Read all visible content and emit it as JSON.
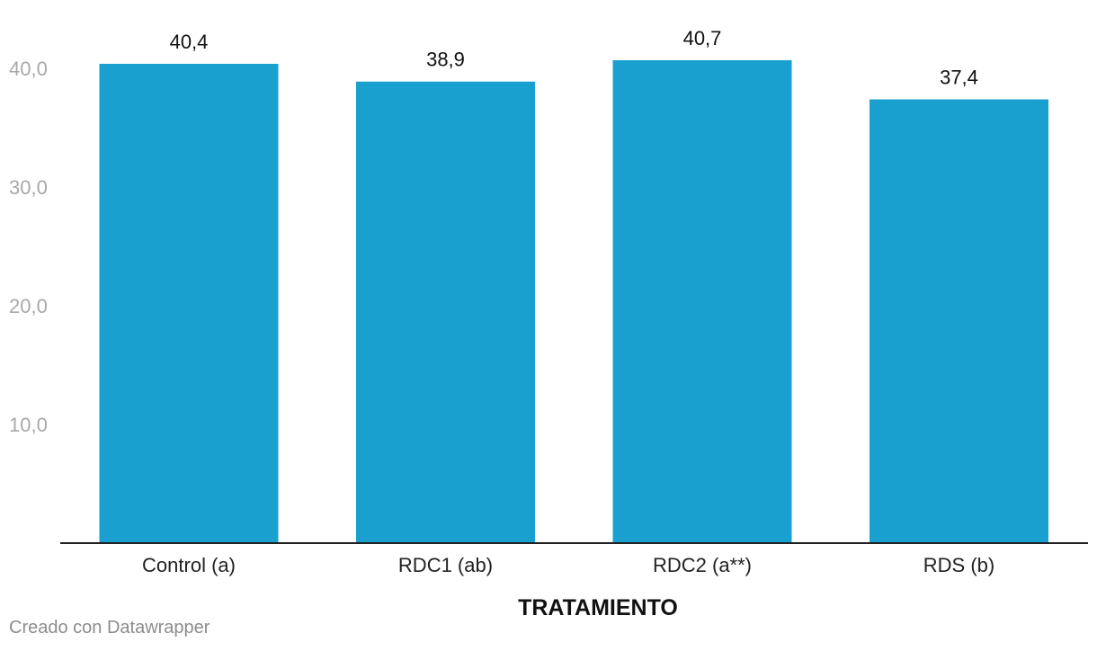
{
  "chart_data": {
    "type": "bar",
    "categories": [
      "Control (a)",
      "RDC1 (ab)",
      "RDC2 (a**)",
      "RDS (b)"
    ],
    "values": [
      40.4,
      38.9,
      40.7,
      37.4
    ],
    "value_labels": [
      "40,4",
      "38,9",
      "40,7",
      "37,4"
    ],
    "xlabel": "TRATAMIENTO",
    "ylabel": "",
    "ylim": [
      0,
      40.7
    ],
    "yticks": [
      10,
      20,
      30,
      40
    ],
    "ytick_labels": [
      "10,0",
      "20,0",
      "30,0",
      "40,0"
    ],
    "grid": false,
    "bar_color": "#1aa0cf"
  },
  "credit": "Creado con Datawrapper"
}
